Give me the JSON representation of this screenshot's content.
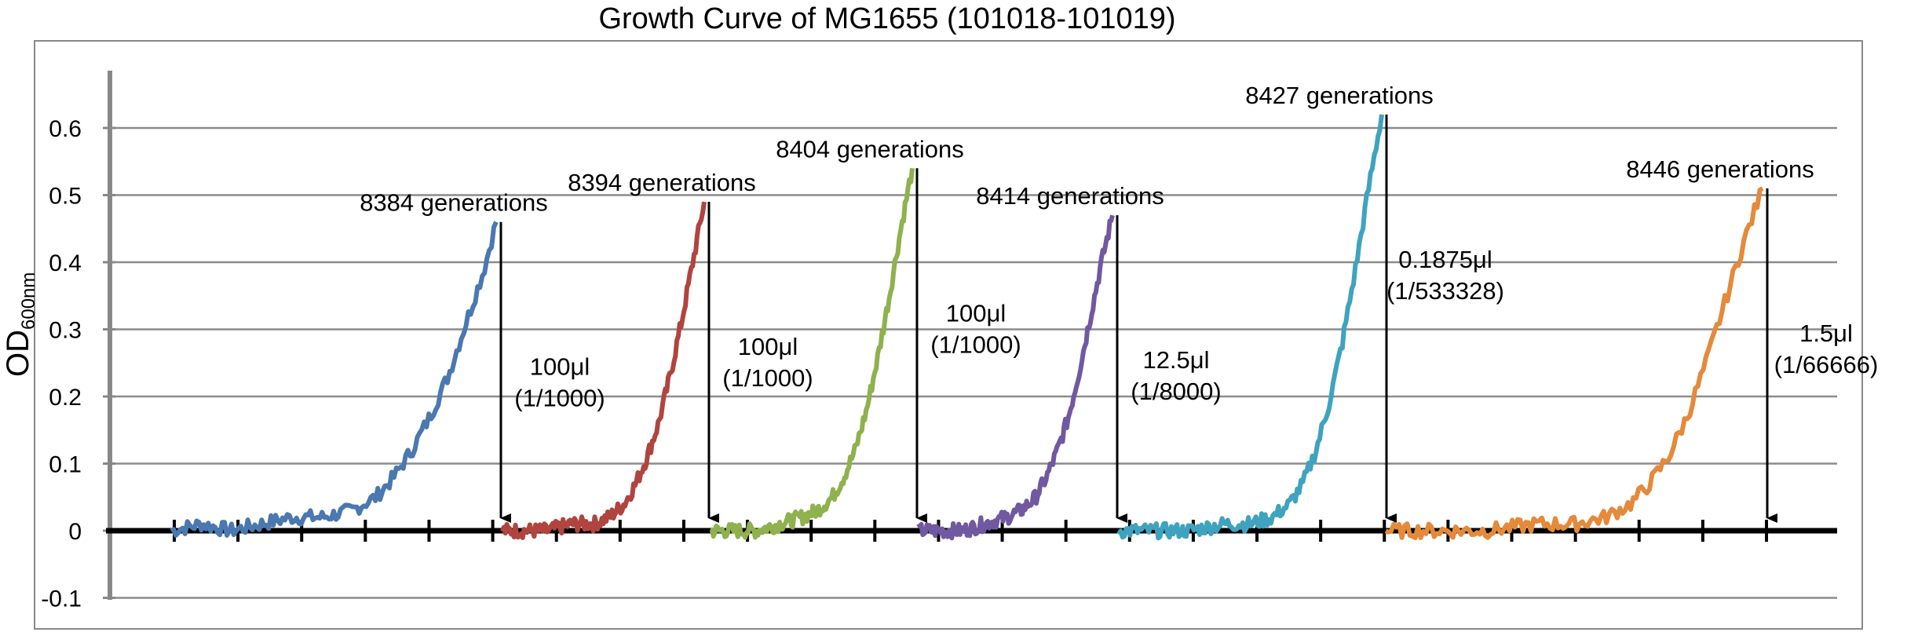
{
  "chart_data": {
    "type": "line",
    "title": "Growth Curve of MG1655 (101018-101019)",
    "ylabel": {
      "main": "OD",
      "sub": "600nm"
    },
    "xlabel": "",
    "ylim": [
      -0.1,
      0.65
    ],
    "yticks": [
      "0.6",
      "0.5",
      "0.4",
      "0.3",
      "0.2",
      "0.1",
      "0",
      "-0.1"
    ],
    "yticks_values": [
      0.6,
      0.5,
      0.4,
      0.3,
      0.2,
      0.1,
      0,
      -0.1
    ],
    "grid": true,
    "legend": "none",
    "series": [
      {
        "color": "#4A78B0",
        "peak": 0.46,
        "points": [
          [
            0,
            0.0
          ],
          [
            5,
            0.01
          ],
          [
            10,
            0.0
          ],
          [
            15,
            0.01
          ],
          [
            20,
            0.02
          ],
          [
            25,
            0.02
          ],
          [
            30,
            0.03
          ],
          [
            34,
            0.05
          ],
          [
            37,
            0.08
          ],
          [
            40,
            0.12
          ],
          [
            43,
            0.17
          ],
          [
            46,
            0.23
          ],
          [
            49,
            0.31
          ],
          [
            52,
            0.39
          ],
          [
            54,
            0.46
          ]
        ]
      },
      {
        "color": "#B0443F",
        "peak": 0.49,
        "points": [
          [
            0,
            0.0
          ],
          [
            6,
            0.0
          ],
          [
            12,
            0.0
          ],
          [
            18,
            0.01
          ],
          [
            24,
            0.01
          ],
          [
            28,
            0.02
          ],
          [
            32,
            0.04
          ],
          [
            35,
            0.07
          ],
          [
            38,
            0.11
          ],
          [
            41,
            0.16
          ],
          [
            44,
            0.23
          ],
          [
            47,
            0.31
          ],
          [
            50,
            0.4
          ],
          [
            53,
            0.49
          ]
        ]
      },
      {
        "color": "#8FB14E",
        "peak": 0.54,
        "points": [
          [
            0,
            0.0
          ],
          [
            6,
            0.0
          ],
          [
            12,
            0.0
          ],
          [
            18,
            0.01
          ],
          [
            24,
            0.02
          ],
          [
            28,
            0.03
          ],
          [
            32,
            0.05
          ],
          [
            35,
            0.08
          ],
          [
            38,
            0.12
          ],
          [
            41,
            0.18
          ],
          [
            44,
            0.26
          ],
          [
            47,
            0.35
          ],
          [
            50,
            0.45
          ],
          [
            53,
            0.54
          ]
        ]
      },
      {
        "color": "#7059A0",
        "peak": 0.47,
        "points": [
          [
            0,
            0.0
          ],
          [
            6,
            0.0
          ],
          [
            12,
            0.0
          ],
          [
            18,
            0.01
          ],
          [
            24,
            0.02
          ],
          [
            28,
            0.03
          ],
          [
            32,
            0.05
          ],
          [
            35,
            0.08
          ],
          [
            38,
            0.12
          ],
          [
            41,
            0.17
          ],
          [
            44,
            0.24
          ],
          [
            47,
            0.32
          ],
          [
            50,
            0.4
          ],
          [
            53,
            0.47
          ]
        ]
      },
      {
        "color": "#3FA3BF",
        "peak": 0.62,
        "points": [
          [
            0,
            0.0
          ],
          [
            8,
            0.0
          ],
          [
            16,
            0.0
          ],
          [
            24,
            0.01
          ],
          [
            30,
            0.01
          ],
          [
            35,
            0.02
          ],
          [
            39,
            0.04
          ],
          [
            42,
            0.07
          ],
          [
            45,
            0.12
          ],
          [
            48,
            0.19
          ],
          [
            51,
            0.28
          ],
          [
            54,
            0.39
          ],
          [
            57,
            0.51
          ],
          [
            60,
            0.62
          ]
        ]
      },
      {
        "color": "#E48A3A",
        "peak": 0.51,
        "points": [
          [
            0,
            0.0
          ],
          [
            8,
            0.0
          ],
          [
            16,
            0.0
          ],
          [
            24,
            0.01
          ],
          [
            30,
            0.01
          ],
          [
            35,
            0.02
          ],
          [
            39,
            0.04
          ],
          [
            42,
            0.07
          ],
          [
            45,
            0.11
          ],
          [
            48,
            0.17
          ],
          [
            51,
            0.25
          ],
          [
            54,
            0.34
          ],
          [
            57,
            0.43
          ],
          [
            60,
            0.51
          ]
        ]
      }
    ],
    "annotations": [
      {
        "label": "8384 generations",
        "volume": "100μl",
        "dilution": "(1/1000)"
      },
      {
        "label": "8394 generations",
        "volume": "100μl",
        "dilution": "(1/1000)"
      },
      {
        "label": "8404 generations",
        "volume": "100μl",
        "dilution": "(1/1000)"
      },
      {
        "label": "8414 generations",
        "volume": "12.5μl",
        "dilution": "(1/8000)"
      },
      {
        "label": "8427 generations",
        "volume": "0.1875μl",
        "dilution": "(1/533328)"
      },
      {
        "label": "8446 generations",
        "volume": "1.5μl",
        "dilution": "(1/66666)"
      }
    ]
  }
}
